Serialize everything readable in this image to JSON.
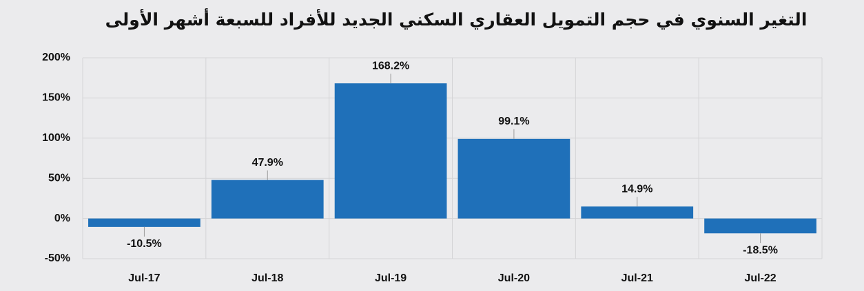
{
  "chart_data": {
    "type": "bar",
    "title": "التغير السنوي في حجم التمويل العقاري السكني الجديد للأفراد للسبعة أشهر الأولى",
    "categories": [
      "Jul-17",
      "Jul-18",
      "Jul-19",
      "Jul-20",
      "Jul-21",
      "Jul-22"
    ],
    "values": [
      -10.5,
      47.9,
      168.2,
      99.1,
      14.9,
      -18.5
    ],
    "value_labels": [
      "-10.5%",
      "47.9%",
      "168.2%",
      "99.1%",
      "14.9%",
      "-18.5%"
    ],
    "color": "#1f70b9",
    "ylim": [
      -50,
      200
    ],
    "yticks": [
      {
        "value": -50,
        "label": "-50%"
      },
      {
        "value": 0,
        "label": "0%"
      },
      {
        "value": 50,
        "label": "50%"
      },
      {
        "value": 100,
        "label": "100%"
      },
      {
        "value": 150,
        "label": "150%"
      },
      {
        "value": 200,
        "label": "200%"
      }
    ],
    "grid": true
  }
}
